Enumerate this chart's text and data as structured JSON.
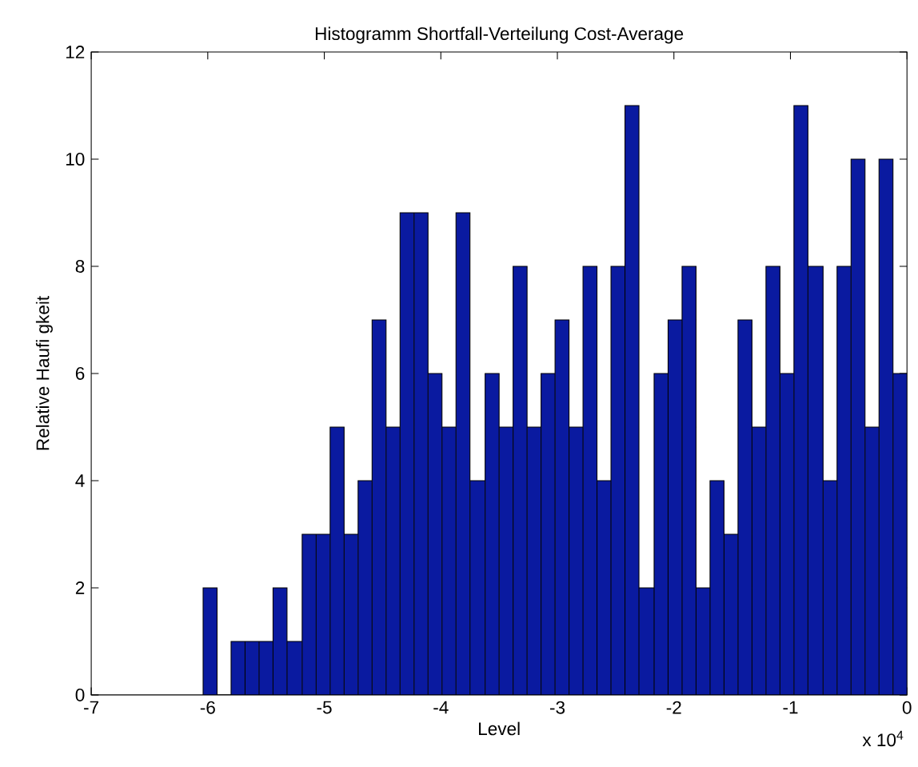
{
  "chart_data": {
    "type": "histogram",
    "title": "Histogramm Shortfall-Verteilung Cost-Average",
    "xlabel": "Level",
    "ylabel": "Relative Haufi gkeit",
    "bins": [
      -6.04,
      -5.92,
      -5.8,
      -5.68,
      -5.56,
      -5.44,
      -5.32,
      -5.19,
      -5.07,
      -4.95,
      -4.83,
      -4.71,
      -4.59,
      -4.47,
      -4.35,
      -4.23,
      -4.11,
      -3.99,
      -3.87,
      -3.75,
      -3.62,
      -3.5,
      -3.38,
      -3.26,
      -3.14,
      -3.02,
      -2.9,
      -2.78,
      -2.66,
      -2.54,
      -2.42,
      -2.3,
      -2.17,
      -2.05,
      -1.93,
      -1.81,
      -1.69,
      -1.57,
      -1.45,
      -1.33,
      -1.21,
      -1.09,
      -0.97,
      -0.85,
      -0.72,
      -0.6,
      -0.48,
      -0.36,
      -0.24,
      -0.12,
      0
    ],
    "values": [
      2,
      0,
      1,
      1,
      1,
      2,
      1,
      3,
      3,
      5,
      3,
      4,
      7,
      5,
      9,
      9,
      6,
      5,
      9,
      4,
      6,
      5,
      8,
      5,
      6,
      7,
      5,
      8,
      4,
      8,
      11,
      2,
      6,
      7,
      8,
      2,
      4,
      3,
      7,
      5,
      8,
      6,
      11,
      8,
      4,
      8,
      10,
      5,
      10,
      6
    ],
    "color": "#0a1aa0",
    "xlim": [
      -7,
      0
    ],
    "xticks": [
      -7,
      -6,
      -5,
      -4,
      -3,
      -2,
      -1,
      0
    ],
    "ylim": [
      0,
      12
    ],
    "yticks": [
      0,
      2,
      4,
      6,
      8,
      10,
      12
    ],
    "annotations": [
      "x 10$^{4}$"
    ]
  }
}
